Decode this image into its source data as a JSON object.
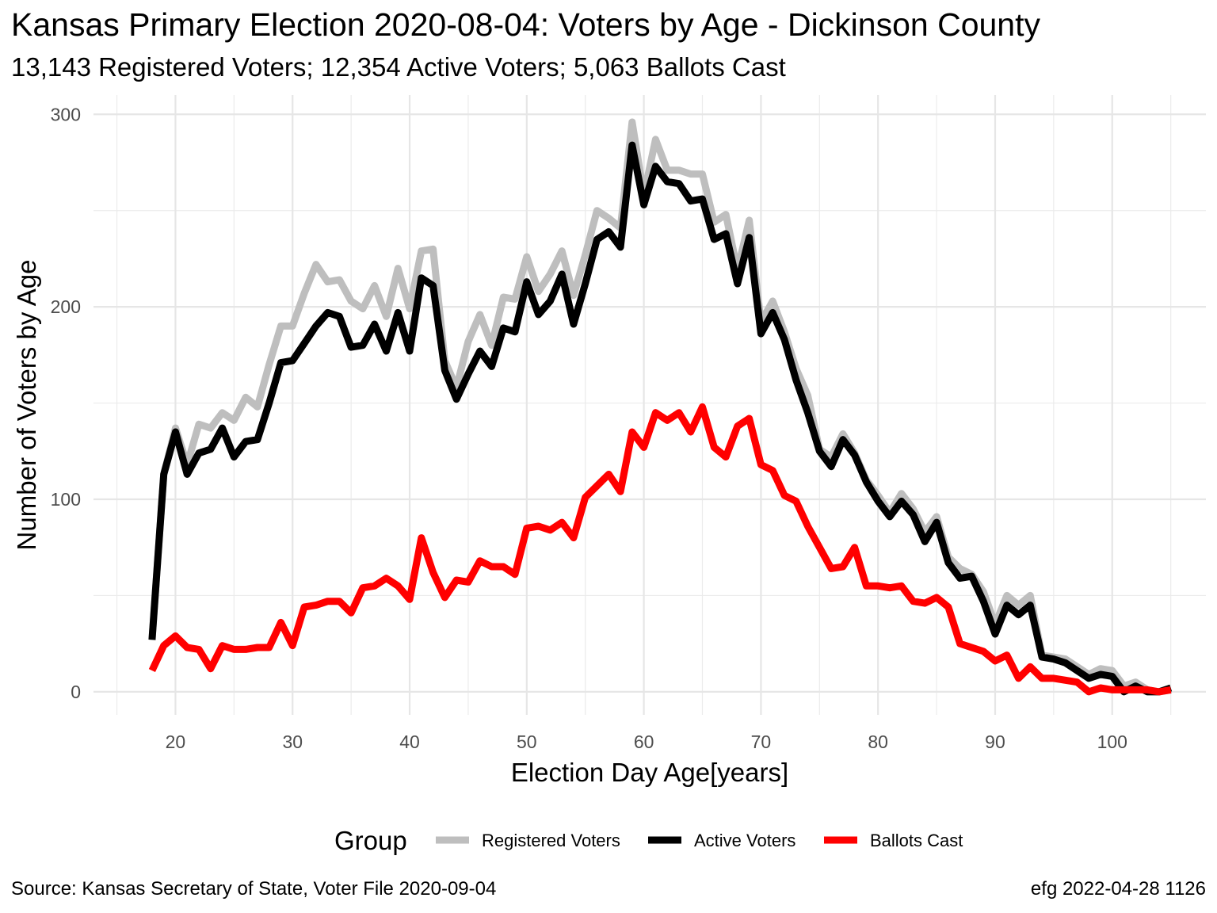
{
  "title": "Kansas Primary Election 2020-08-04:  Voters by Age - Dickinson County",
  "subtitle": "13,143 Registered Voters; 12,354 Active Voters; 5,063 Ballots Cast",
  "caption_left": "Source:  Kansas Secretary of State, Voter File  2020-09-04",
  "caption_right": "efg 2022-04-28 1126",
  "chart_data": {
    "type": "line",
    "xlabel": "Election Day Age[years]",
    "ylabel": "Number of Voters by Age",
    "xlim": [
      13,
      108
    ],
    "ylim": [
      -12,
      310
    ],
    "xticks": [
      20,
      30,
      40,
      50,
      60,
      70,
      80,
      90,
      100
    ],
    "yticks": [
      0,
      100,
      200,
      300
    ],
    "grid": true,
    "legend_title": "Group",
    "legend_position": "bottom",
    "x": [
      18,
      19,
      20,
      21,
      22,
      23,
      24,
      25,
      26,
      27,
      28,
      29,
      30,
      31,
      32,
      33,
      34,
      35,
      36,
      37,
      38,
      39,
      40,
      41,
      42,
      43,
      44,
      45,
      46,
      47,
      48,
      49,
      50,
      51,
      52,
      53,
      54,
      55,
      56,
      57,
      58,
      59,
      60,
      61,
      62,
      63,
      64,
      65,
      66,
      67,
      68,
      69,
      70,
      71,
      72,
      73,
      74,
      75,
      76,
      77,
      78,
      79,
      80,
      81,
      82,
      83,
      84,
      85,
      86,
      87,
      88,
      89,
      90,
      91,
      92,
      93,
      94,
      95,
      96,
      97,
      98,
      99,
      100,
      101,
      102,
      103,
      104,
      105
    ],
    "series": [
      {
        "name": "Registered Voters",
        "color": "#BEBEBE",
        "values": [
          27,
          113,
          137,
          118,
          139,
          137,
          145,
          141,
          153,
          148,
          170,
          190,
          190,
          207,
          222,
          213,
          214,
          203,
          199,
          211,
          195,
          220,
          199,
          229,
          230,
          172,
          158,
          182,
          196,
          180,
          205,
          204,
          226,
          208,
          217,
          229,
          206,
          227,
          250,
          246,
          241,
          296,
          258,
          287,
          271,
          271,
          269,
          269,
          244,
          248,
          219,
          245,
          192,
          203,
          187,
          168,
          154,
          126,
          122,
          134,
          124,
          110,
          102,
          93,
          103,
          95,
          83,
          91,
          70,
          64,
          61,
          52,
          35,
          50,
          45,
          50,
          19,
          18,
          17,
          13,
          9,
          12,
          11,
          3,
          5,
          1,
          0,
          1
        ]
      },
      {
        "name": "Active Voters",
        "color": "#000000",
        "values": [
          27,
          113,
          135,
          113,
          124,
          126,
          137,
          122,
          130,
          131,
          150,
          171,
          172,
          181,
          190,
          197,
          195,
          179,
          180,
          191,
          177,
          197,
          177,
          215,
          211,
          167,
          152,
          165,
          177,
          169,
          189,
          187,
          213,
          196,
          203,
          217,
          191,
          212,
          235,
          239,
          231,
          284,
          253,
          273,
          265,
          264,
          255,
          256,
          235,
          238,
          212,
          236,
          186,
          197,
          183,
          162,
          145,
          125,
          117,
          131,
          123,
          109,
          99,
          91,
          99,
          92,
          78,
          88,
          67,
          59,
          60,
          47,
          30,
          45,
          40,
          45,
          18,
          17,
          15,
          11,
          7,
          9,
          8,
          0,
          3,
          0,
          0,
          2
        ]
      },
      {
        "name": "Ballots Cast",
        "color": "#FF0000",
        "values": [
          11,
          24,
          29,
          23,
          22,
          12,
          24,
          22,
          22,
          23,
          23,
          36,
          24,
          44,
          45,
          47,
          47,
          41,
          54,
          55,
          59,
          55,
          48,
          80,
          62,
          49,
          58,
          57,
          68,
          65,
          65,
          61,
          85,
          86,
          84,
          88,
          80,
          101,
          107,
          113,
          104,
          135,
          127,
          145,
          141,
          145,
          135,
          148,
          127,
          122,
          138,
          142,
          118,
          115,
          102,
          99,
          86,
          75,
          64,
          65,
          75,
          55,
          55,
          54,
          55,
          47,
          46,
          49,
          44,
          25,
          23,
          21,
          16,
          19,
          7,
          13,
          7,
          7,
          6,
          5,
          0,
          2,
          1,
          1,
          1,
          1,
          0,
          1
        ]
      }
    ]
  }
}
